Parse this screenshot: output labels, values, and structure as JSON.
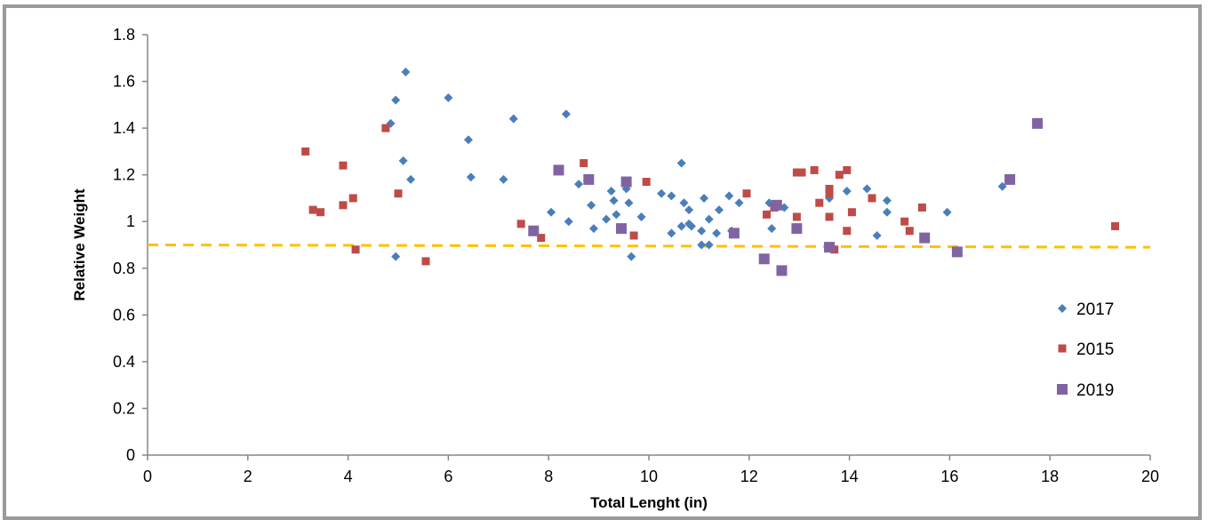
{
  "chart_data": {
    "type": "scatter",
    "title": "",
    "xlabel": "Total Lenght (in)",
    "ylabel": "Relative Weight",
    "xlim": [
      0,
      20
    ],
    "ylim": [
      0,
      1.8
    ],
    "x_ticks": [
      "0",
      "2",
      "4",
      "6",
      "8",
      "10",
      "12",
      "14",
      "16",
      "18",
      "20"
    ],
    "y_ticks": [
      "0",
      "0.2",
      "0.4",
      "0.6",
      "0.8",
      "1",
      "1.2",
      "1.4",
      "1.6",
      "1.8"
    ],
    "grid": false,
    "legend_position": "right",
    "reference_line": {
      "style": "dashed",
      "color": "#FFC000",
      "from": [
        0,
        0.9
      ],
      "to": [
        20,
        0.89
      ]
    },
    "series": [
      {
        "name": "2017",
        "marker": "diamond",
        "color": "#4A7EBB",
        "points": [
          [
            4.85,
            1.42
          ],
          [
            4.95,
            1.52
          ],
          [
            4.95,
            0.85
          ],
          [
            5.1,
            1.26
          ],
          [
            5.15,
            1.64
          ],
          [
            5.25,
            1.18
          ],
          [
            6.0,
            1.53
          ],
          [
            6.4,
            1.35
          ],
          [
            6.45,
            1.19
          ],
          [
            7.1,
            1.18
          ],
          [
            7.3,
            1.44
          ],
          [
            8.05,
            1.04
          ],
          [
            8.35,
            1.46
          ],
          [
            8.4,
            1.0
          ],
          [
            8.6,
            1.16
          ],
          [
            8.85,
            1.07
          ],
          [
            8.9,
            0.97
          ],
          [
            9.15,
            1.01
          ],
          [
            9.25,
            1.13
          ],
          [
            9.3,
            1.09
          ],
          [
            9.35,
            1.03
          ],
          [
            9.55,
            1.14
          ],
          [
            9.6,
            1.08
          ],
          [
            9.65,
            0.85
          ],
          [
            9.85,
            1.02
          ],
          [
            10.25,
            1.12
          ],
          [
            10.45,
            0.95
          ],
          [
            10.45,
            1.11
          ],
          [
            10.65,
            0.98
          ],
          [
            10.65,
            1.25
          ],
          [
            10.7,
            1.08
          ],
          [
            10.8,
            0.99
          ],
          [
            10.8,
            1.05
          ],
          [
            10.85,
            0.98
          ],
          [
            11.05,
            0.96
          ],
          [
            11.05,
            0.9
          ],
          [
            11.1,
            1.1
          ],
          [
            11.2,
            0.9
          ],
          [
            11.2,
            1.01
          ],
          [
            11.35,
            0.95
          ],
          [
            11.4,
            1.05
          ],
          [
            11.6,
            1.11
          ],
          [
            11.65,
            0.96
          ],
          [
            11.8,
            1.08
          ],
          [
            12.4,
            1.08
          ],
          [
            12.45,
            0.97
          ],
          [
            12.7,
            1.06
          ],
          [
            13.6,
            1.1
          ],
          [
            13.95,
            1.13
          ],
          [
            14.35,
            1.14
          ],
          [
            14.55,
            0.94
          ],
          [
            14.75,
            1.04
          ],
          [
            14.75,
            1.09
          ],
          [
            15.95,
            1.04
          ],
          [
            17.05,
            1.15
          ]
        ]
      },
      {
        "name": "2015",
        "marker": "square",
        "color": "#BE4B48",
        "points": [
          [
            3.15,
            1.3
          ],
          [
            3.3,
            1.05
          ],
          [
            3.45,
            1.04
          ],
          [
            3.9,
            1.24
          ],
          [
            3.9,
            1.07
          ],
          [
            4.1,
            1.1
          ],
          [
            4.15,
            0.88
          ],
          [
            4.75,
            1.4
          ],
          [
            5.0,
            1.12
          ],
          [
            5.55,
            0.83
          ],
          [
            7.45,
            0.99
          ],
          [
            7.85,
            0.93
          ],
          [
            8.7,
            1.25
          ],
          [
            9.7,
            0.94
          ],
          [
            9.95,
            1.17
          ],
          [
            11.95,
            1.12
          ],
          [
            12.35,
            1.03
          ],
          [
            12.5,
            1.06
          ],
          [
            12.55,
            1.07
          ],
          [
            12.95,
            1.21
          ],
          [
            12.95,
            1.02
          ],
          [
            13.0,
            1.21
          ],
          [
            13.05,
            1.21
          ],
          [
            13.3,
            1.22
          ],
          [
            13.4,
            1.08
          ],
          [
            13.6,
            1.12
          ],
          [
            13.6,
            1.14
          ],
          [
            13.6,
            1.02
          ],
          [
            13.7,
            0.88
          ],
          [
            13.8,
            1.2
          ],
          [
            13.95,
            1.22
          ],
          [
            13.95,
            0.96
          ],
          [
            14.05,
            1.04
          ],
          [
            14.45,
            1.1
          ],
          [
            15.1,
            1.0
          ],
          [
            15.2,
            0.96
          ],
          [
            15.45,
            1.06
          ],
          [
            19.3,
            0.98
          ]
        ]
      },
      {
        "name": "2019",
        "marker": "square",
        "color": "#8064A2",
        "points": [
          [
            7.7,
            0.96
          ],
          [
            8.2,
            1.22
          ],
          [
            8.8,
            1.18
          ],
          [
            9.45,
            0.97
          ],
          [
            9.55,
            1.17
          ],
          [
            11.7,
            0.95
          ],
          [
            12.3,
            0.84
          ],
          [
            12.55,
            1.07
          ],
          [
            12.65,
            0.79
          ],
          [
            12.95,
            0.97
          ],
          [
            13.6,
            0.89
          ],
          [
            15.5,
            0.93
          ],
          [
            16.15,
            0.87
          ],
          [
            17.2,
            1.18
          ],
          [
            17.75,
            1.42
          ]
        ]
      }
    ]
  }
}
